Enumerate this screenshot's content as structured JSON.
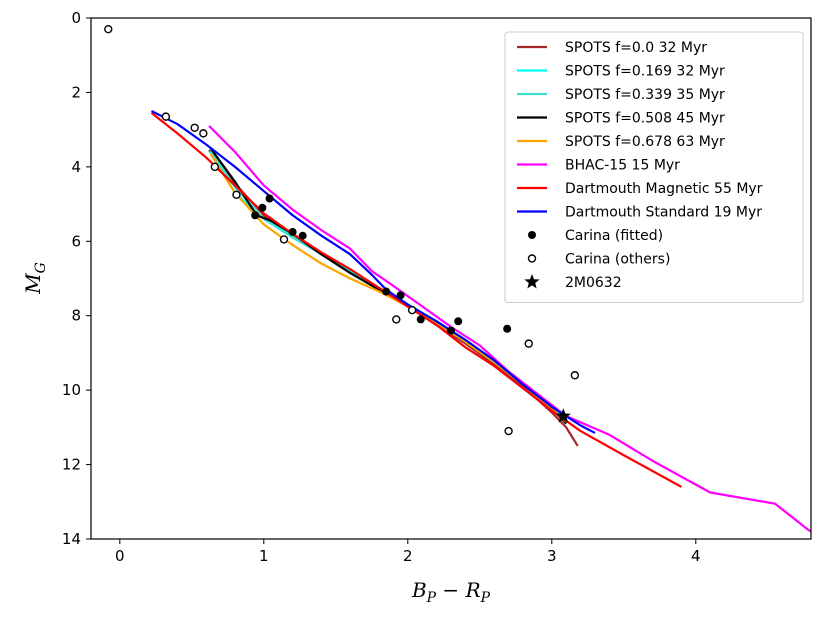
{
  "chart_data": {
    "type": "scatter",
    "title": "",
    "xlabel": "B_P − R_P",
    "ylabel": "M_G",
    "xlim": [
      -0.2,
      4.8
    ],
    "ylim": [
      14,
      0
    ],
    "y_inverted": true,
    "x_ticks": [
      0,
      1,
      2,
      3,
      4
    ],
    "y_ticks": [
      0,
      2,
      4,
      6,
      8,
      10,
      12,
      14
    ],
    "grid": false,
    "legend_position": "top-right",
    "series": [
      {
        "name": "SPOTS f=0.0 32 Myr",
        "kind": "line",
        "color": "#a52a2a",
        "x": [
          0.62,
          0.8,
          1.0,
          1.2,
          1.4,
          1.6,
          1.8,
          2.0,
          2.2,
          2.4,
          2.6,
          2.8,
          3.0,
          3.1,
          3.18
        ],
        "y": [
          3.55,
          4.45,
          5.3,
          5.85,
          6.35,
          6.85,
          7.3,
          7.75,
          8.25,
          8.75,
          9.3,
          9.9,
          10.6,
          11.0,
          11.5
        ]
      },
      {
        "name": "SPOTS f=0.169 32 Myr",
        "kind": "line",
        "color": "#00ffff",
        "x": [
          0.63,
          0.8,
          1.0,
          1.2,
          1.4,
          1.6,
          1.8,
          2.0,
          2.2,
          2.4,
          2.6,
          2.8,
          3.0,
          3.1
        ],
        "y": [
          3.6,
          4.7,
          5.4,
          5.85,
          6.3,
          6.8,
          7.25,
          7.7,
          8.15,
          8.65,
          9.2,
          9.8,
          10.45,
          10.8
        ]
      },
      {
        "name": "SPOTS f=0.339 35 Myr",
        "kind": "line",
        "color": "#40e0d0",
        "x": [
          0.63,
          0.8,
          1.0,
          1.2,
          1.4,
          1.6,
          1.8,
          2.0,
          2.2,
          2.4,
          2.6,
          2.8,
          3.0,
          3.1
        ],
        "y": [
          3.55,
          4.55,
          5.4,
          5.9,
          6.35,
          6.85,
          7.3,
          7.75,
          8.2,
          8.7,
          9.25,
          9.85,
          10.5,
          10.85
        ]
      },
      {
        "name": "SPOTS f=0.508 45 Myr",
        "kind": "line",
        "color": "#000000",
        "x": [
          0.63,
          0.8,
          0.95,
          1.05,
          1.2,
          1.4,
          1.6,
          1.8,
          2.0,
          2.2,
          2.4,
          2.6,
          2.8,
          3.0,
          3.1
        ],
        "y": [
          3.5,
          4.4,
          5.3,
          5.45,
          5.8,
          6.35,
          6.85,
          7.3,
          7.75,
          8.2,
          8.7,
          9.25,
          9.85,
          10.5,
          10.9
        ]
      },
      {
        "name": "SPOTS f=0.678 63 Myr",
        "kind": "line",
        "color": "#ffa500",
        "x": [
          0.63,
          0.8,
          1.0,
          1.2,
          1.4,
          1.6,
          1.8,
          2.0,
          2.2,
          2.4,
          2.6,
          2.8,
          3.0,
          3.1
        ],
        "y": [
          3.65,
          4.7,
          5.55,
          6.1,
          6.6,
          7.0,
          7.35,
          7.75,
          8.2,
          8.7,
          9.25,
          9.85,
          10.5,
          10.85
        ]
      },
      {
        "name": "BHAC-15 15 Myr",
        "kind": "line",
        "color": "#ff00ff",
        "x": [
          0.62,
          0.8,
          1.0,
          1.2,
          1.4,
          1.6,
          1.75,
          1.9,
          2.1,
          2.3,
          2.5,
          2.7,
          2.9,
          3.1,
          3.4,
          3.7,
          4.1,
          4.55,
          4.78,
          4.8
        ],
        "y": [
          2.9,
          3.6,
          4.5,
          5.15,
          5.7,
          6.2,
          6.8,
          7.2,
          7.75,
          8.3,
          8.8,
          9.5,
          10.1,
          10.7,
          11.2,
          11.9,
          12.75,
          13.05,
          13.75,
          13.8
        ]
      },
      {
        "name": "Dartmouth Magnetic 55 Myr",
        "kind": "line",
        "color": "#ff0000",
        "x": [
          0.22,
          0.4,
          0.6,
          0.8,
          1.0,
          1.2,
          1.4,
          1.6,
          1.8,
          2.0,
          2.2,
          2.4,
          2.6,
          2.8,
          3.0,
          3.2,
          3.5,
          3.9
        ],
        "y": [
          2.55,
          3.1,
          3.75,
          4.5,
          5.25,
          5.8,
          6.3,
          6.75,
          7.25,
          7.75,
          8.25,
          8.85,
          9.35,
          9.95,
          10.55,
          11.1,
          11.75,
          12.6
        ]
      },
      {
        "name": "Dartmouth Standard 19 Myr",
        "kind": "line",
        "color": "#0000ff",
        "x": [
          0.22,
          0.4,
          0.6,
          0.8,
          1.0,
          1.2,
          1.4,
          1.6,
          1.75,
          1.85,
          2.0,
          2.2,
          2.4,
          2.6,
          2.8,
          3.0,
          3.2,
          3.3
        ],
        "y": [
          2.5,
          2.85,
          3.4,
          4.0,
          4.65,
          5.3,
          5.85,
          6.35,
          6.9,
          7.3,
          7.7,
          8.15,
          8.65,
          9.2,
          9.85,
          10.45,
          10.95,
          11.15
        ]
      },
      {
        "name": "Carina (fitted)",
        "kind": "points",
        "marker": "filled-circle",
        "color": "#000000",
        "x": [
          0.94,
          0.99,
          1.04,
          1.2,
          1.27,
          1.85,
          1.95,
          2.09,
          2.3,
          2.35,
          2.69
        ],
        "y": [
          5.3,
          5.1,
          4.85,
          5.75,
          5.85,
          7.35,
          7.45,
          8.1,
          8.4,
          8.15,
          8.35
        ]
      },
      {
        "name": "Carina (others)",
        "kind": "points",
        "marker": "open-circle",
        "color": "#000000",
        "x": [
          -0.08,
          0.32,
          0.52,
          0.58,
          0.66,
          0.81,
          1.14,
          1.92,
          2.03,
          2.7,
          2.84,
          3.16
        ],
        "y": [
          0.3,
          2.65,
          2.95,
          3.1,
          4.0,
          4.75,
          5.95,
          8.1,
          7.85,
          11.1,
          8.75,
          9.6
        ]
      },
      {
        "name": "2M0632",
        "kind": "points",
        "marker": "star",
        "color": "#000000",
        "x": [
          3.08
        ],
        "y": [
          10.7
        ]
      }
    ]
  }
}
